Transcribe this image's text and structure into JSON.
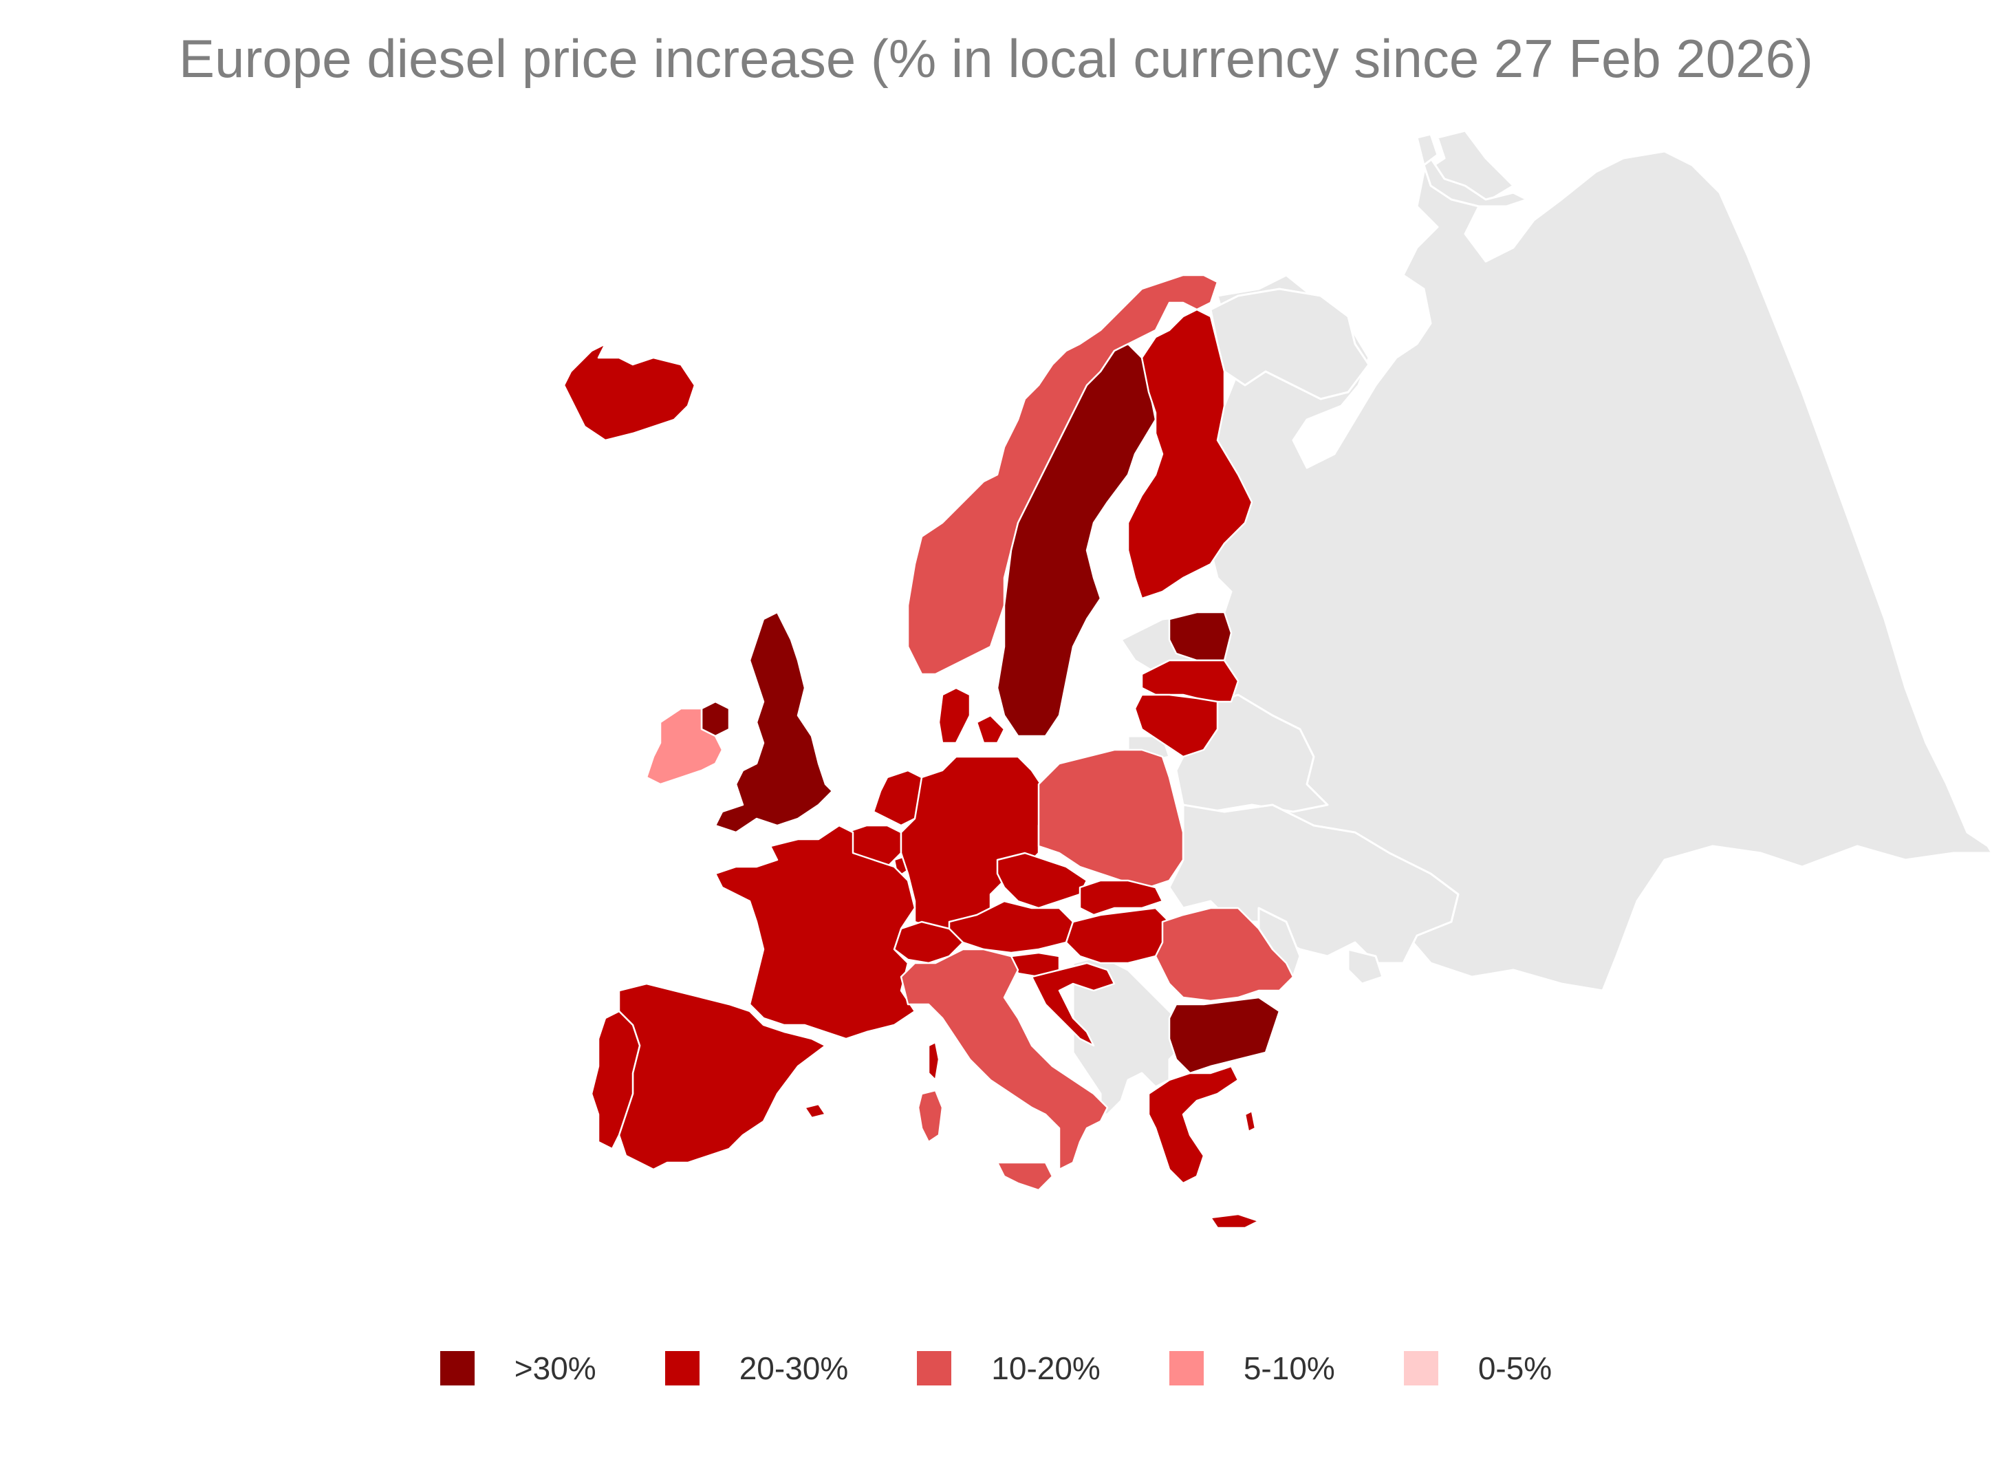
{
  "title": "Europe diesel price increase (% in local currency since 27 Feb 2026)",
  "legend": [
    {
      "label": ">30%",
      "color": "#8b0000"
    },
    {
      "label": "20-30%",
      "color": "#c00000"
    },
    {
      "label": "10-20%",
      "color": "#e05050"
    },
    {
      "label": "5-10%",
      "color": "#ff8c8c"
    },
    {
      "label": "0-5%",
      "color": "#ffcccc"
    }
  ],
  "countries": [
    {
      "name": "Iceland",
      "band": "20-30%"
    },
    {
      "name": "Norway",
      "band": "10-20%"
    },
    {
      "name": "Sweden",
      "band": ">30%"
    },
    {
      "name": "Finland",
      "band": "20-30%"
    },
    {
      "name": "Estonia",
      "band": ">30%"
    },
    {
      "name": "Latvia",
      "band": "20-30%"
    },
    {
      "name": "Lithuania",
      "band": "20-30%"
    },
    {
      "name": "Denmark",
      "band": "20-30%"
    },
    {
      "name": "United Kingdom",
      "band": ">30%"
    },
    {
      "name": "Northern Ireland",
      "band": ">30%"
    },
    {
      "name": "Ireland",
      "band": "5-10%"
    },
    {
      "name": "Netherlands",
      "band": "20-30%"
    },
    {
      "name": "Belgium",
      "band": "20-30%"
    },
    {
      "name": "Luxembourg",
      "band": "20-30%"
    },
    {
      "name": "Germany",
      "band": "20-30%"
    },
    {
      "name": "Poland",
      "band": "10-20%"
    },
    {
      "name": "Czechia",
      "band": "20-30%"
    },
    {
      "name": "Slovakia",
      "band": "20-30%"
    },
    {
      "name": "Austria",
      "band": "20-30%"
    },
    {
      "name": "Hungary",
      "band": "20-30%"
    },
    {
      "name": "Slovenia",
      "band": "20-30%"
    },
    {
      "name": "Croatia",
      "band": "20-30%"
    },
    {
      "name": "Switzerland",
      "band": "20-30%"
    },
    {
      "name": "France",
      "band": "20-30%"
    },
    {
      "name": "Spain",
      "band": "20-30%"
    },
    {
      "name": "Portugal",
      "band": "20-30%"
    },
    {
      "name": "Italy",
      "band": "10-20%"
    },
    {
      "name": "Sardinia",
      "band": "10-20%"
    },
    {
      "name": "Sicily",
      "band": "10-20%"
    },
    {
      "name": "Corsica",
      "band": "20-30%"
    },
    {
      "name": "Romania",
      "band": "10-20%"
    },
    {
      "name": "Bulgaria",
      "band": ">30%"
    },
    {
      "name": "Greece",
      "band": "20-30%"
    },
    {
      "name": "Crete",
      "band": "20-30%"
    }
  ]
}
